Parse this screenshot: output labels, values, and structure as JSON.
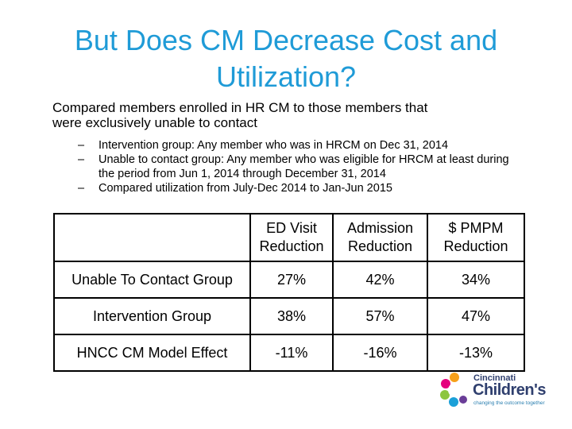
{
  "slide": {
    "title_line1": "But Does CM Decrease Cost and",
    "title_line2": "Utilization?",
    "intro_line1": "Compared members enrolled in HR CM to those members that",
    "intro_line2": "were exclusively unable to contact",
    "bullet_marker": "–",
    "bullets": [
      "Intervention group:  Any member who was in HRCM on Dec 31, 2014",
      "Unable to contact group:  Any member who was eligible for HRCM at least during the period from Jun 1, 2014 through December 31, 2014",
      "Compared utilization from July-Dec 2014 to Jan-Jun 2015"
    ]
  },
  "table": {
    "headers": [
      {
        "line1": "ED Visit",
        "line2": "Reduction"
      },
      {
        "line1": "Admission",
        "line2": "Reduction"
      },
      {
        "line1": "$ PMPM",
        "line2": "Reduction"
      }
    ],
    "rows": [
      {
        "label": "Unable To Contact Group",
        "values": [
          "27%",
          "42%",
          "34%"
        ]
      },
      {
        "label": "Intervention Group",
        "values": [
          "38%",
          "57%",
          "47%"
        ]
      },
      {
        "label": "HNCC CM Model Effect",
        "values": [
          "-11%",
          "-16%",
          "-13%"
        ]
      }
    ]
  },
  "logo": {
    "line1": "Cincinnati",
    "line2": "Children's",
    "tagline": "changing the outcome together",
    "colors": [
      "#f6a01a",
      "#e5007e",
      "#8dc63f",
      "#1ba0d8",
      "#6a3d98"
    ]
  }
}
